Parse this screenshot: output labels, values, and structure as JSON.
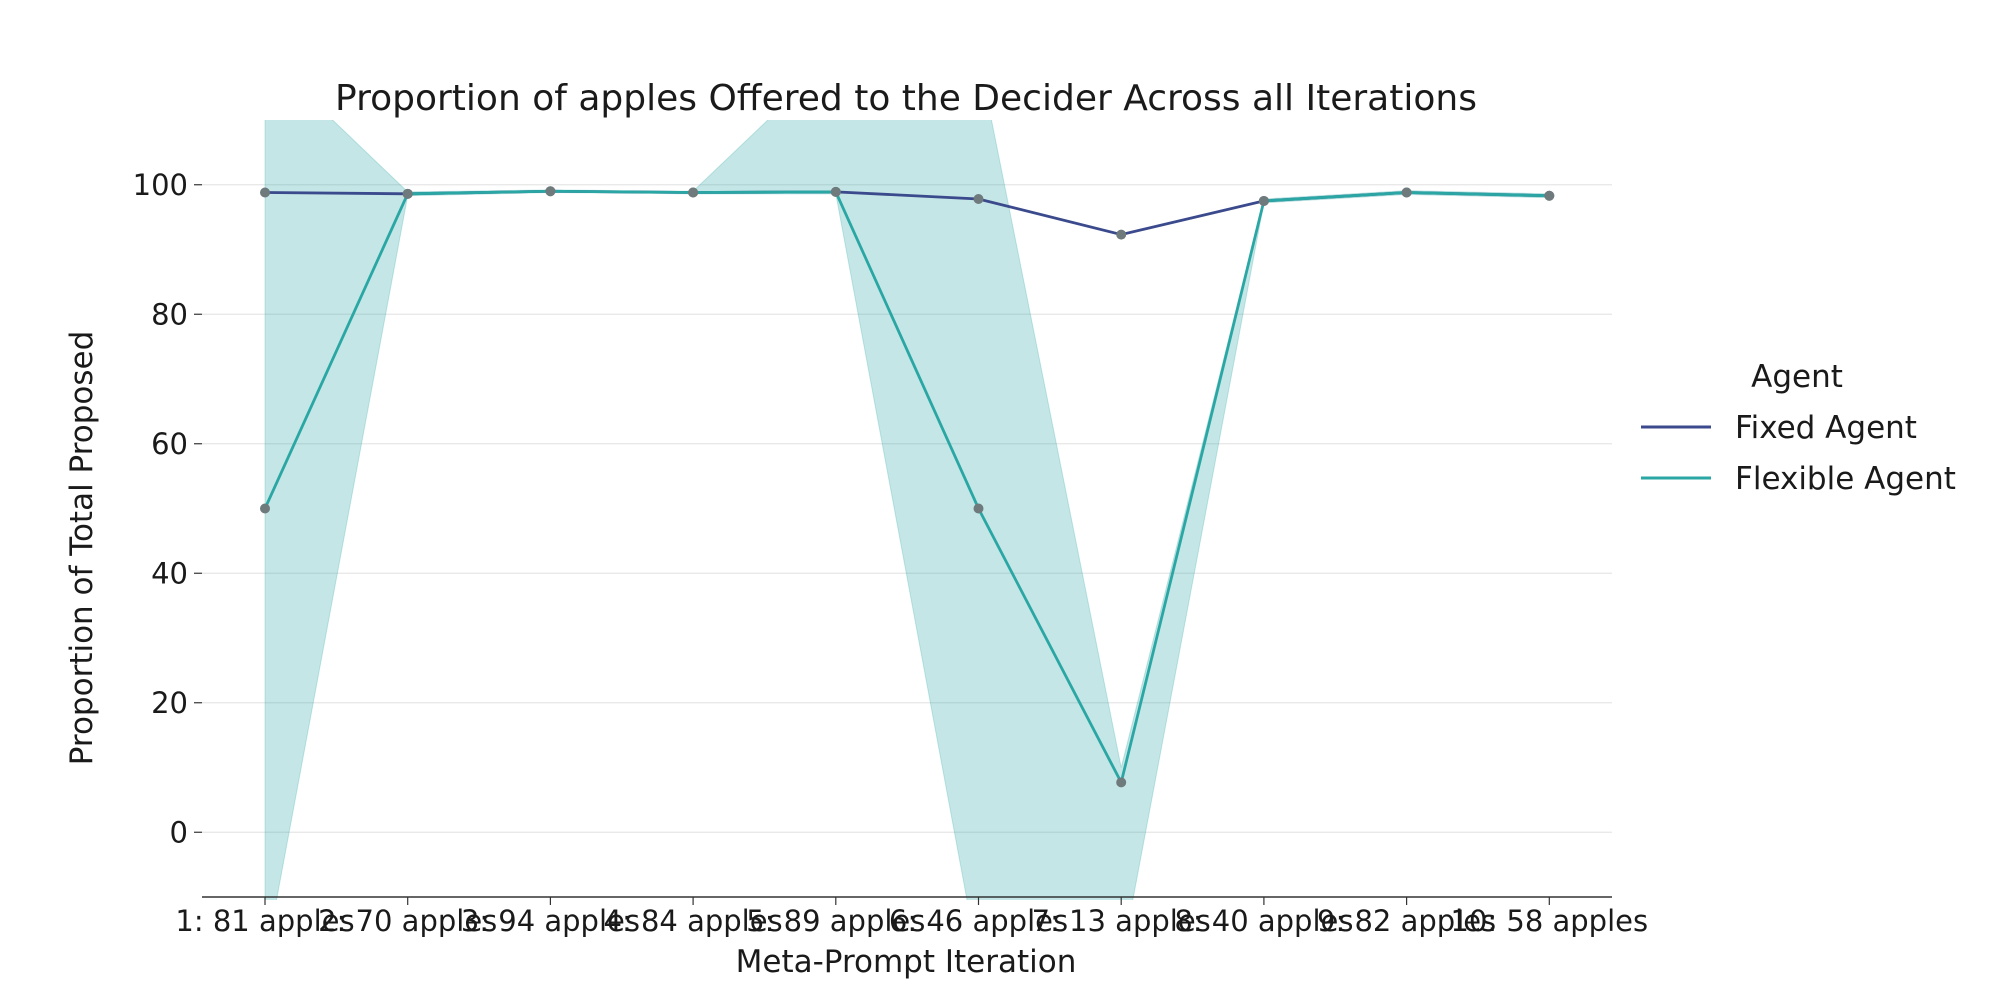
{
  "chart_data": {
    "type": "line",
    "title": "Proportion of apples Offered to the Decider Across all Iterations",
    "xlabel": "Meta-Prompt Iteration",
    "ylabel": "Proportion of Total Proposed",
    "categories": [
      "1: 81 apples",
      "2: 70 apples",
      "3: 94 apples",
      "4: 84 apples",
      "5: 89 apples",
      "6: 46 apples",
      "7: 13 apples",
      "8: 40 apples",
      "9: 82 apples",
      "10: 58 apples"
    ],
    "ylim": [
      -10,
      110
    ],
    "yticks": [
      0,
      20,
      40,
      60,
      80,
      100
    ],
    "grid": true,
    "legend": {
      "title": "Agent",
      "placement": "right"
    },
    "series": [
      {
        "name": "Fixed Agent",
        "color": "#3b4a8c",
        "values": [
          98.8,
          98.6,
          99.0,
          98.8,
          98.9,
          97.8,
          92.3,
          97.5,
          98.8,
          98.3
        ]
      },
      {
        "name": "Flexible Agent",
        "color": "#2aa7a4",
        "values": [
          50.0,
          98.6,
          99.0,
          98.8,
          98.9,
          50.0,
          7.7,
          97.5,
          98.8,
          98.3
        ],
        "ci_lower": [
          -20,
          98.3,
          98.8,
          98.6,
          98.6,
          -20,
          -20,
          97.2,
          98.5,
          98.0
        ],
        "ci_upper": [
          120,
          98.9,
          99.2,
          99.0,
          120,
          120,
          10,
          97.8,
          99.1,
          98.6
        ]
      }
    ]
  }
}
